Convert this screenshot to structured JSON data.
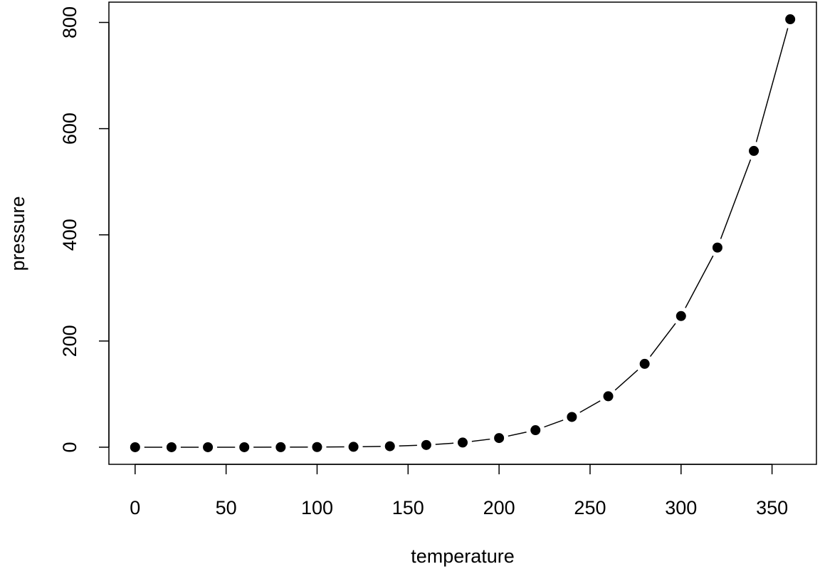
{
  "chart_data": {
    "type": "line",
    "x_label": "temperature",
    "y_label": "pressure",
    "x": [
      0,
      20,
      40,
      60,
      80,
      100,
      120,
      140,
      160,
      180,
      200,
      220,
      240,
      260,
      280,
      300,
      320,
      340,
      360
    ],
    "series": [
      {
        "name": "pressure",
        "color": "#000000",
        "values": [
          0.0002,
          0.0012,
          0.006,
          0.03,
          0.09,
          0.27,
          0.75,
          1.85,
          4.2,
          8.8,
          17.3,
          32.1,
          57,
          96,
          157,
          247,
          376,
          558,
          806
        ]
      }
    ],
    "xlim": [
      -14.4,
      374.4
    ],
    "ylim": [
      -32.24,
      838.24
    ],
    "xticks": [
      0,
      50,
      100,
      150,
      200,
      250,
      300,
      350
    ],
    "yticks": [
      0,
      200,
      400,
      600,
      800
    ],
    "markers": true,
    "grid": false
  }
}
